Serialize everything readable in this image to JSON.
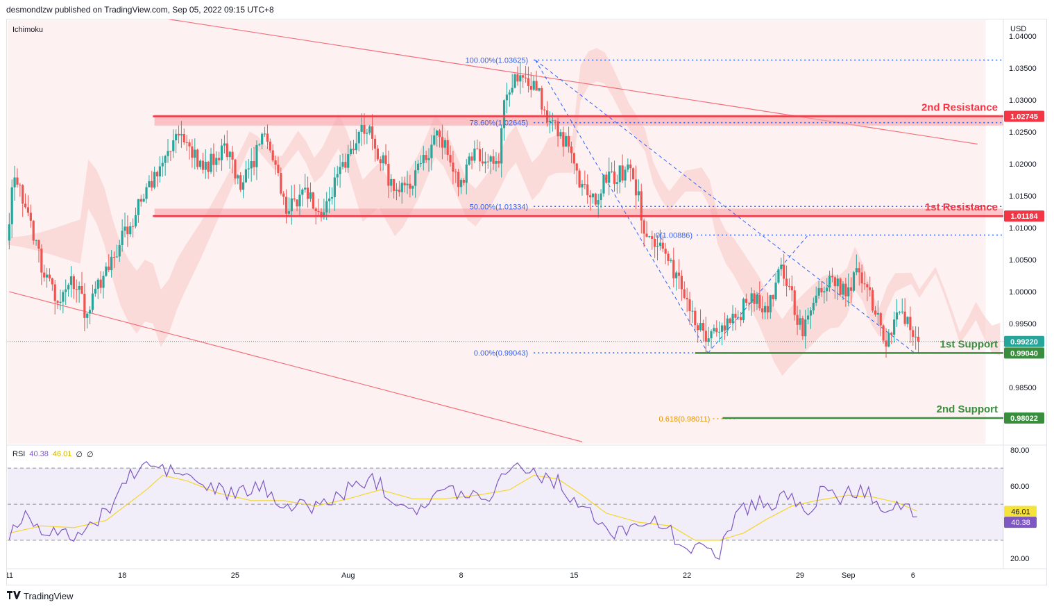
{
  "header": {
    "text": "desmondlzw published on TradingView.com, Sep 05, 2022 09:15 UTC+8"
  },
  "footer": {
    "brand": "TradingView"
  },
  "indicators": {
    "ichimoku_label": "Ichimoku",
    "rsi_label": "RSI",
    "rsi_value": "40.38",
    "rsi_ma_value": "46.01",
    "rsi_extra1": "∅",
    "rsi_extra2": "∅"
  },
  "colors": {
    "up": "#26a69a",
    "down": "#ef5350",
    "resistance": "#f23645",
    "support": "#388e3c",
    "fib": "#2962ff",
    "fib618": "#f7a600",
    "rsi": "#7e57c2",
    "rsi_ma": "#f5d52a"
  },
  "chart_data": [
    {
      "type": "candlestick",
      "title": "",
      "currency": "USD",
      "ylim": [
        0.9762,
        1.0425
      ],
      "y_ticks": [
        "1.04000",
        "1.03500",
        "1.03000",
        "1.02500",
        "1.02000",
        "1.01500",
        "1.01000",
        "1.00500",
        "1.00000",
        "0.99500",
        "0.98500"
      ],
      "x_ticks": [
        {
          "label": "11",
          "day": 11
        },
        {
          "label": "18",
          "day": 18
        },
        {
          "label": "25",
          "day": 25
        },
        {
          "label": "Aug",
          "day": 32
        },
        {
          "label": "8",
          "day": 39
        },
        {
          "label": "15",
          "day": 46
        },
        {
          "label": "22",
          "day": 53
        },
        {
          "label": "29",
          "day": 60
        },
        {
          "label": "Sep",
          "day": 63
        },
        {
          "label": "6",
          "day": 67
        }
      ],
      "x_range_days": [
        10.9,
        72.6
      ],
      "x_unit": "days from Jul 1 2022, 4-hour candles",
      "keyframes": [
        [
          11.0,
          1.008
        ],
        [
          11.4,
          1.017
        ],
        [
          12.2,
          1.014
        ],
        [
          13.2,
          1.004
        ],
        [
          14.3,
          0.9985
        ],
        [
          15.2,
          1.002
        ],
        [
          16.0,
          0.996
        ],
        [
          17.0,
          1.003
        ],
        [
          18.5,
          1.01
        ],
        [
          20.0,
          1.0175
        ],
        [
          21.5,
          1.025
        ],
        [
          23.2,
          1.019
        ],
        [
          24.5,
          1.023
        ],
        [
          25.5,
          1.017
        ],
        [
          27.0,
          1.024
        ],
        [
          28.4,
          1.013
        ],
        [
          29.4,
          1.016
        ],
        [
          30.5,
          1.012
        ],
        [
          32.0,
          1.02
        ],
        [
          33.0,
          1.027
        ],
        [
          33.8,
          1.023
        ],
        [
          35.2,
          1.015
        ],
        [
          36.5,
          1.019
        ],
        [
          37.8,
          1.025
        ],
        [
          39.0,
          1.017
        ],
        [
          40.0,
          1.021
        ],
        [
          41.5,
          1.02
        ],
        [
          41.9,
          1.031
        ],
        [
          42.6,
          1.034
        ],
        [
          43.5,
          1.033
        ],
        [
          44.9,
          1.026
        ],
        [
          46.0,
          1.0225
        ],
        [
          46.5,
          1.017
        ],
        [
          47.5,
          1.014
        ],
        [
          48.2,
          1.018
        ],
        [
          49.5,
          1.019
        ],
        [
          50.1,
          1.016
        ],
        [
          50.5,
          1.01
        ],
        [
          51.5,
          1.007
        ],
        [
          53.0,
          1.0
        ],
        [
          54.3,
          0.992
        ],
        [
          55.0,
          0.994
        ],
        [
          56.0,
          0.996
        ],
        [
          57.2,
          0.9985
        ],
        [
          58.2,
          0.998
        ],
        [
          59.0,
          1.004
        ],
        [
          60.3,
          0.994
        ],
        [
          61.2,
          1.001
        ],
        [
          62.5,
          1.002
        ],
        [
          63.0,
          0.999
        ],
        [
          63.8,
          1.004
        ],
        [
          64.6,
          0.999
        ],
        [
          65.5,
          0.992
        ],
        [
          66.3,
          0.9975
        ],
        [
          66.8,
          0.995
        ],
        [
          67.3,
          0.9925
        ]
      ],
      "levels": [
        {
          "name": "2nd Resistance",
          "value": "1.02745",
          "price": 1.02745,
          "kind": "resistance"
        },
        {
          "name": "1st Resistance",
          "value": "1.01184",
          "price": 1.01184,
          "kind": "resistance"
        },
        {
          "name": "",
          "value": "0.99220",
          "price": 0.9922,
          "kind": "last"
        },
        {
          "name": "1st Support",
          "value": "0.99040",
          "price": 0.9904,
          "kind": "support"
        },
        {
          "name": "2nd Support",
          "value": "0.98022",
          "price": 0.98022,
          "kind": "support"
        }
      ],
      "fib_labels": [
        {
          "text": "100.00%(1.03625)",
          "price": 1.03625
        },
        {
          "text": "78.60%(1.02645)",
          "price": 1.02645
        },
        {
          "text": "50.00%(1.01334)",
          "price": 1.01334
        },
        {
          "text": "0(1.00886)",
          "price": 1.00886
        },
        {
          "text": "0.00%(0.99043)",
          "price": 0.99043
        },
        {
          "text": "0.618(0.98011)",
          "price": 0.98011
        }
      ],
      "channel": {
        "upper": [
          [
            11.0,
            1.0465
          ],
          [
            71.0,
            1.0231
          ]
        ],
        "lower": [
          [
            11.0,
            1.0
          ],
          [
            46.5,
            0.9765
          ]
        ]
      },
      "resistance_zones": [
        {
          "from_day": 20.0,
          "to_day": 72.6,
          "low": 1.026,
          "high": 1.0277
        },
        {
          "from_day": 20.0,
          "to_day": 72.6,
          "low": 1.0116,
          "high": 1.013
        }
      ]
    },
    {
      "type": "line",
      "title": "RSI",
      "ylim": [
        15,
        82
      ],
      "y_ticks": [
        "80.00",
        "60.00",
        "20.00"
      ],
      "bands": [
        70,
        50,
        30
      ],
      "series": [
        {
          "name": "RSI",
          "value": "40.38",
          "keyframes": [
            [
              11.0,
              33
            ],
            [
              12.0,
              45
            ],
            [
              13.0,
              37
            ],
            [
              14.5,
              32
            ],
            [
              16.0,
              36
            ],
            [
              17.0,
              46
            ],
            [
              18.3,
              64
            ],
            [
              19.5,
              72
            ],
            [
              20.3,
              70
            ],
            [
              22.0,
              66
            ],
            [
              23.0,
              60
            ],
            [
              25.0,
              55
            ],
            [
              26.5,
              60
            ],
            [
              28.5,
              48
            ],
            [
              30.5,
              50
            ],
            [
              32.0,
              58
            ],
            [
              33.5,
              65
            ],
            [
              35.0,
              52
            ],
            [
              36.5,
              48
            ],
            [
              38.0,
              58
            ],
            [
              40.0,
              55
            ],
            [
              41.0,
              56
            ],
            [
              42.0,
              73
            ],
            [
              43.5,
              68
            ],
            [
              45.0,
              62
            ],
            [
              46.5,
              48
            ],
            [
              47.5,
              40
            ],
            [
              48.5,
              32
            ],
            [
              50.0,
              42
            ],
            [
              51.5,
              38
            ],
            [
              52.5,
              30
            ],
            [
              53.8,
              24
            ],
            [
              55.0,
              24
            ],
            [
              56.0,
              45
            ],
            [
              57.5,
              52
            ],
            [
              58.5,
              48
            ],
            [
              59.0,
              58
            ],
            [
              60.2,
              45
            ],
            [
              61.3,
              56
            ],
            [
              62.5,
              54
            ],
            [
              63.2,
              57
            ],
            [
              64.3,
              56
            ],
            [
              65.5,
              47
            ],
            [
              66.5,
              51
            ],
            [
              67.0,
              44
            ],
            [
              67.3,
              40
            ]
          ]
        },
        {
          "name": "RSI-MA",
          "value": "46.01",
          "keyframes": [
            [
              11.0,
              34
            ],
            [
              13.0,
              38
            ],
            [
              15.0,
              37
            ],
            [
              17.0,
              41
            ],
            [
              19.5,
              58
            ],
            [
              20.5,
              66
            ],
            [
              22.0,
              63
            ],
            [
              24.0,
              56
            ],
            [
              26.0,
              52
            ],
            [
              28.0,
              52
            ],
            [
              30.0,
              49
            ],
            [
              32.0,
              53
            ],
            [
              34.0,
              58
            ],
            [
              36.0,
              53
            ],
            [
              38.0,
              53
            ],
            [
              40.0,
              55
            ],
            [
              42.0,
              58
            ],
            [
              43.5,
              66
            ],
            [
              45.0,
              64
            ],
            [
              46.5,
              55
            ],
            [
              48.0,
              45
            ],
            [
              50.0,
              40
            ],
            [
              52.0,
              38
            ],
            [
              53.5,
              30
            ],
            [
              55.0,
              30
            ],
            [
              56.5,
              34
            ],
            [
              58.0,
              42
            ],
            [
              59.5,
              49
            ],
            [
              61.0,
              52
            ],
            [
              63.0,
              55
            ],
            [
              64.5,
              54
            ],
            [
              66.0,
              51
            ],
            [
              67.3,
              46
            ]
          ]
        }
      ]
    }
  ]
}
